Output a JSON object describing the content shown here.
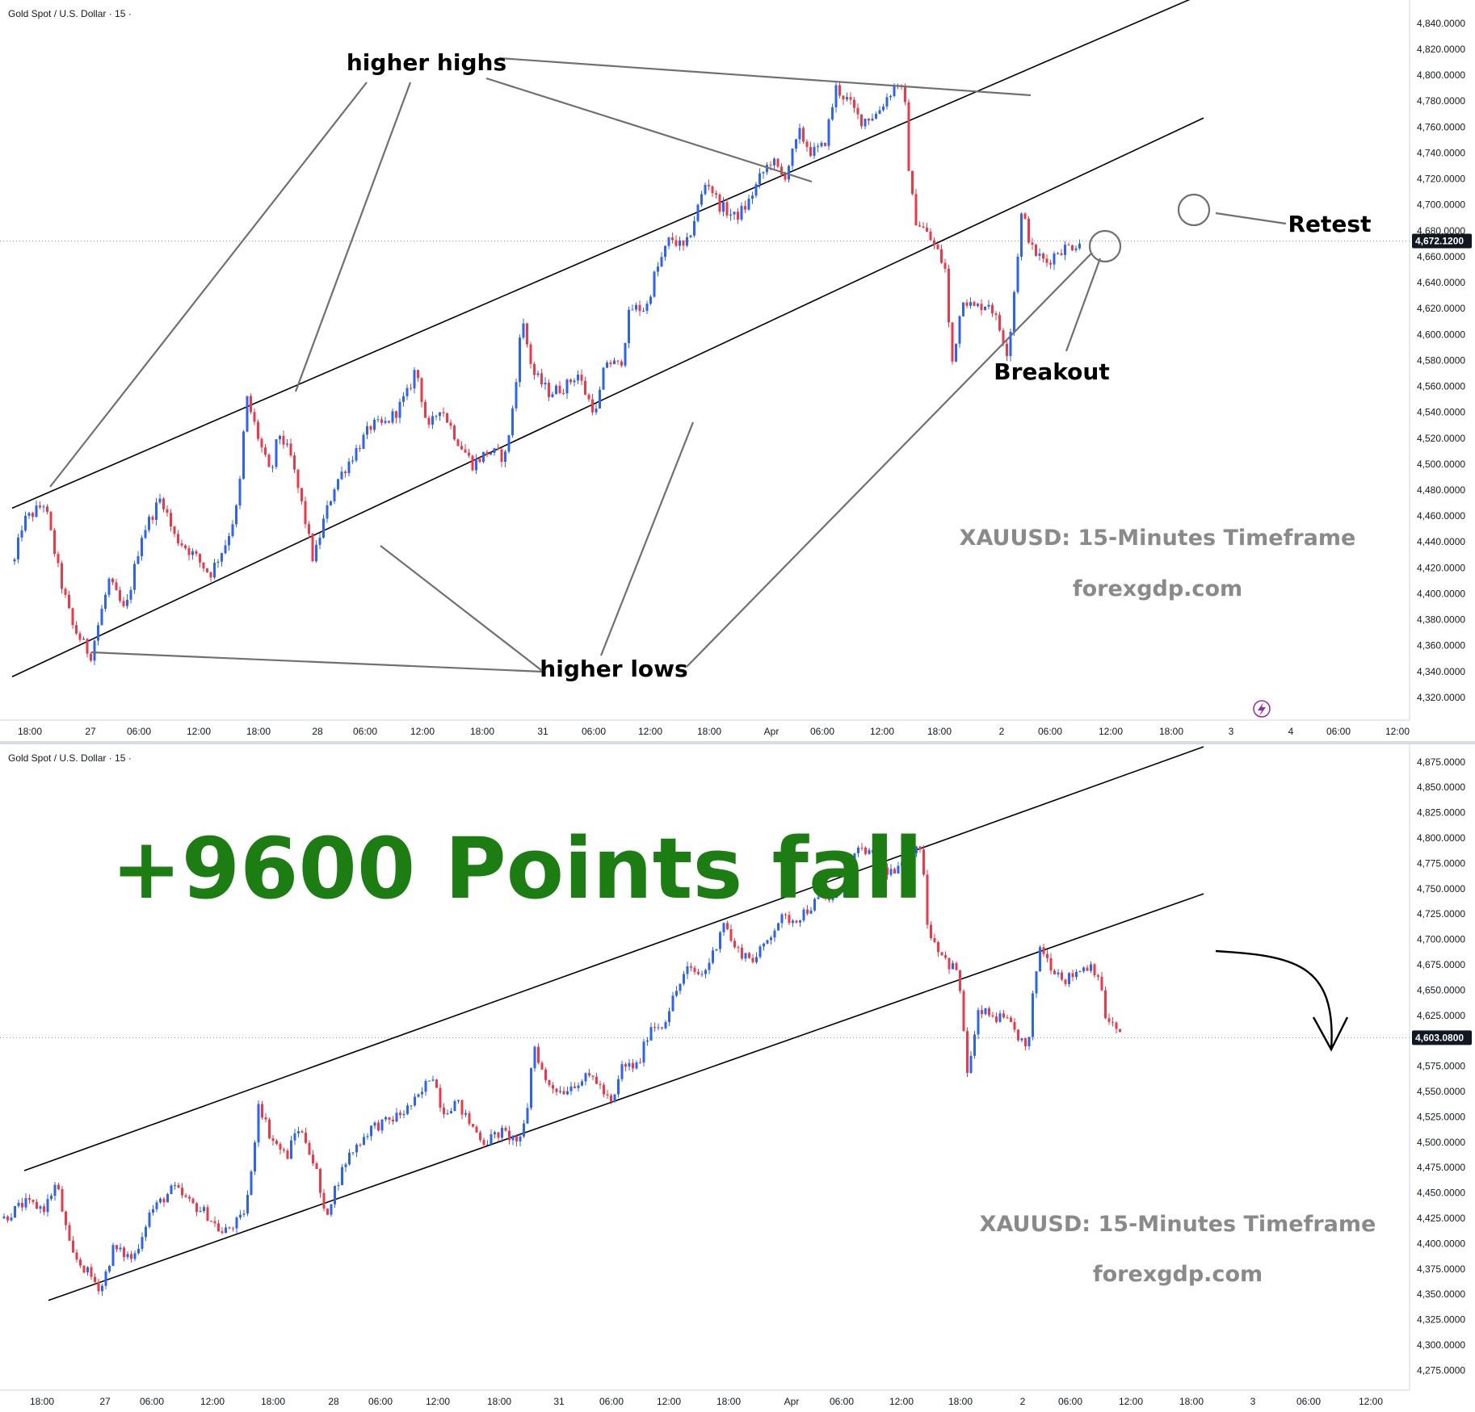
{
  "chart_data": [
    {
      "type": "candlestick",
      "symbol_label": "Gold Spot / U.S. Dollar · 15 ·",
      "timeframe": "15",
      "y_ticks": [
        "4,320.0000",
        "4,340.0000",
        "4,360.0000",
        "4,380.0000",
        "4,400.0000",
        "4,420.0000",
        "4,440.0000",
        "4,460.0000",
        "4,480.0000",
        "4,500.0000",
        "4,520.0000",
        "4,540.0000",
        "4,560.0000",
        "4,580.0000",
        "4,600.0000",
        "4,620.0000",
        "4,640.0000",
        "4,660.0000",
        "4,680.0000",
        "4,700.0000",
        "4,720.0000",
        "4,740.0000",
        "4,760.0000",
        "4,780.0000",
        "4,800.0000",
        "4,820.0000",
        "4,840.0000"
      ],
      "ylim": [
        4310,
        4853
      ],
      "x_ticks": [
        "18:00",
        "27",
        "06:00",
        "12:00",
        "18:00",
        "28",
        "06:00",
        "12:00",
        "18:00",
        "31",
        "06:00",
        "12:00",
        "18:00",
        "Apr",
        "06:00",
        "12:00",
        "18:00",
        "2",
        "06:00",
        "12:00",
        "18:00",
        "3",
        "4",
        "06:00",
        "12:00"
      ],
      "last_price_label": "4,672.1200",
      "last_price": 4672.12,
      "price_path": [
        [
          18,
          4425
        ],
        [
          28,
          4455
        ],
        [
          55,
          4470
        ],
        [
          75,
          4410
        ],
        [
          90,
          4375
        ],
        [
          112,
          4352
        ],
        [
          135,
          4410
        ],
        [
          155,
          4385
        ],
        [
          175,
          4445
        ],
        [
          200,
          4475
        ],
        [
          215,
          4445
        ],
        [
          240,
          4430
        ],
        [
          260,
          4415
        ],
        [
          280,
          4440
        ],
        [
          295,
          4470
        ],
        [
          305,
          4552
        ],
        [
          320,
          4520
        ],
        [
          335,
          4490
        ],
        [
          345,
          4525
        ],
        [
          360,
          4505
        ],
        [
          375,
          4465
        ],
        [
          388,
          4425
        ],
        [
          400,
          4455
        ],
        [
          415,
          4485
        ],
        [
          430,
          4500
        ],
        [
          445,
          4515
        ],
        [
          460,
          4530
        ],
        [
          475,
          4530
        ],
        [
          490,
          4540
        ],
        [
          505,
          4555
        ],
        [
          515,
          4575
        ],
        [
          530,
          4525
        ],
        [
          545,
          4545
        ],
        [
          565,
          4520
        ],
        [
          585,
          4500
        ],
        [
          605,
          4510
        ],
        [
          625,
          4505
        ],
        [
          638,
          4555
        ],
        [
          645,
          4615
        ],
        [
          660,
          4570
        ],
        [
          680,
          4555
        ],
        [
          700,
          4560
        ],
        [
          715,
          4570
        ],
        [
          728,
          4550
        ],
        [
          738,
          4540
        ],
        [
          750,
          4580
        ],
        [
          768,
          4575
        ],
        [
          780,
          4620
        ],
        [
          800,
          4620
        ],
        [
          810,
          4645
        ],
        [
          830,
          4675
        ],
        [
          848,
          4665
        ],
        [
          860,
          4690
        ],
        [
          875,
          4720
        ],
        [
          890,
          4700
        ],
        [
          910,
          4690
        ],
        [
          925,
          4700
        ],
        [
          940,
          4720
        ],
        [
          955,
          4735
        ],
        [
          970,
          4720
        ],
        [
          990,
          4755
        ],
        [
          1005,
          4740
        ],
        [
          1020,
          4745
        ],
        [
          1035,
          4790
        ],
        [
          1050,
          4780
        ],
        [
          1065,
          4765
        ],
        [
          1085,
          4770
        ],
        [
          1100,
          4785
        ],
        [
          1112,
          4795
        ],
        [
          1120,
          4780
        ],
        [
          1125,
          4730
        ],
        [
          1132,
          4690
        ],
        [
          1145,
          4680
        ],
        [
          1160,
          4665
        ],
        [
          1170,
          4650
        ],
        [
          1178,
          4575
        ],
        [
          1192,
          4630
        ],
        [
          1205,
          4620
        ],
        [
          1225,
          4625
        ],
        [
          1240,
          4600
        ],
        [
          1248,
          4585
        ],
        [
          1258,
          4650
        ],
        [
          1265,
          4695
        ],
        [
          1278,
          4665
        ],
        [
          1295,
          4655
        ],
        [
          1310,
          4665
        ],
        [
          1325,
          4668
        ],
        [
          1338,
          4672
        ]
      ],
      "channel_lines": [
        {
          "x1": 15,
          "y1": 4466,
          "x2": 1490,
          "y2": 4863
        },
        {
          "x1": 15,
          "y1": 4336,
          "x2": 1490,
          "y2": 4767
        }
      ],
      "annotations": [
        {
          "text": "higher highs"
        },
        {
          "text": "higher lows"
        },
        {
          "text": "Breakout"
        },
        {
          "text": "Retest"
        }
      ],
      "watermark_lines": [
        "XAUUSD: 15-Minutes Timeframe",
        "forexgdp.com"
      ]
    },
    {
      "type": "candlestick",
      "symbol_label": "Gold Spot / U.S. Dollar · 15 ·",
      "timeframe": "15",
      "y_ticks": [
        "4,275.0000",
        "4,300.0000",
        "4,325.0000",
        "4,350.0000",
        "4,375.0000",
        "4,400.0000",
        "4,425.0000",
        "4,450.0000",
        "4,475.0000",
        "4,500.0000",
        "4,525.0000",
        "4,550.0000",
        "4,575.0000",
        "4,600.0000",
        "4,625.0000",
        "4,650.0000",
        "4,675.0000",
        "4,700.0000",
        "4,725.0000",
        "4,750.0000",
        "4,775.0000",
        "4,800.0000",
        "4,825.0000",
        "4,850.0000",
        "4,875.0000"
      ],
      "ylim": [
        4265,
        4886
      ],
      "x_ticks": [
        "18:00",
        "27",
        "06:00",
        "12:00",
        "18:00",
        "28",
        "06:00",
        "12:00",
        "18:00",
        "31",
        "06:00",
        "12:00",
        "18:00",
        "Apr",
        "06:00",
        "12:00",
        "18:00",
        "2",
        "06:00",
        "12:00",
        "18:00",
        "3",
        "06:00",
        "12:00"
      ],
      "last_price_label": "4,603.0800",
      "last_price": 4603.08,
      "price_path": [
        [
          5,
          4425
        ],
        [
          30,
          4440
        ],
        [
          55,
          4435
        ],
        [
          70,
          4460
        ],
        [
          88,
          4390
        ],
        [
          105,
          4375
        ],
        [
          125,
          4355
        ],
        [
          140,
          4395
        ],
        [
          165,
          4385
        ],
        [
          185,
          4430
        ],
        [
          215,
          4455
        ],
        [
          235,
          4440
        ],
        [
          255,
          4430
        ],
        [
          275,
          4410
        ],
        [
          300,
          4425
        ],
        [
          310,
          4460
        ],
        [
          320,
          4540
        ],
        [
          335,
          4505
        ],
        [
          355,
          4485
        ],
        [
          368,
          4515
        ],
        [
          380,
          4500
        ],
        [
          392,
          4470
        ],
        [
          402,
          4425
        ],
        [
          415,
          4455
        ],
        [
          430,
          4485
        ],
        [
          445,
          4500
        ],
        [
          460,
          4515
        ],
        [
          480,
          4520
        ],
        [
          500,
          4530
        ],
        [
          520,
          4545
        ],
        [
          535,
          4570
        ],
        [
          548,
          4530
        ],
        [
          565,
          4540
        ],
        [
          580,
          4520
        ],
        [
          600,
          4500
        ],
        [
          620,
          4510
        ],
        [
          645,
          4500
        ],
        [
          655,
          4545
        ],
        [
          660,
          4600
        ],
        [
          675,
          4560
        ],
        [
          695,
          4550
        ],
        [
          715,
          4560
        ],
        [
          735,
          4565
        ],
        [
          750,
          4545
        ],
        [
          758,
          4535
        ],
        [
          770,
          4575
        ],
        [
          790,
          4575
        ],
        [
          805,
          4615
        ],
        [
          820,
          4615
        ],
        [
          835,
          4645
        ],
        [
          850,
          4670
        ],
        [
          870,
          4665
        ],
        [
          885,
          4690
        ],
        [
          895,
          4720
        ],
        [
          910,
          4690
        ],
        [
          935,
          4680
        ],
        [
          950,
          4700
        ],
        [
          965,
          4720
        ],
        [
          985,
          4720
        ],
        [
          1000,
          4730
        ],
        [
          1015,
          4740
        ],
        [
          1035,
          4740
        ],
        [
          1055,
          4780
        ],
        [
          1070,
          4790
        ],
        [
          1090,
          4770
        ],
        [
          1110,
          4765
        ],
        [
          1125,
          4785
        ],
        [
          1135,
          4795
        ],
        [
          1143,
          4775
        ],
        [
          1148,
          4715
        ],
        [
          1155,
          4700
        ],
        [
          1175,
          4675
        ],
        [
          1185,
          4670
        ],
        [
          1192,
          4620
        ],
        [
          1198,
          4565
        ],
        [
          1212,
          4630
        ],
        [
          1225,
          4625
        ],
        [
          1245,
          4620
        ],
        [
          1265,
          4600
        ],
        [
          1272,
          4585
        ],
        [
          1280,
          4655
        ],
        [
          1288,
          4695
        ],
        [
          1300,
          4675
        ],
        [
          1320,
          4660
        ],
        [
          1335,
          4670
        ],
        [
          1350,
          4675
        ],
        [
          1360,
          4665
        ],
        [
          1368,
          4625
        ],
        [
          1378,
          4615
        ],
        [
          1388,
          4603
        ]
      ],
      "channel_lines": [
        {
          "x1": 30,
          "y1": 4472,
          "x2": 1490,
          "y2": 4890
        },
        {
          "x1": 60,
          "y1": 4344,
          "x2": 1490,
          "y2": 4745
        }
      ],
      "annotations": [
        {
          "text": "+9600 Points fall"
        }
      ],
      "watermark_lines": [
        "XAUUSD: 15-Minutes Timeframe",
        "forexgdp.com"
      ]
    }
  ],
  "colors": {
    "up_candle": "#2962ff",
    "down_candle": "#f23645",
    "channel": "#000000",
    "leader_line": "#707070",
    "annotation_text": "#000000",
    "watermark_text": "#8a8a8a",
    "headline_text": "#1b7d12",
    "last_price_bg": "#131722",
    "axis_text": "#131722",
    "gridline_dotted": "#9598a1",
    "grid": "#e6e7ea"
  },
  "icons": {
    "lightning": "lightning-icon"
  }
}
